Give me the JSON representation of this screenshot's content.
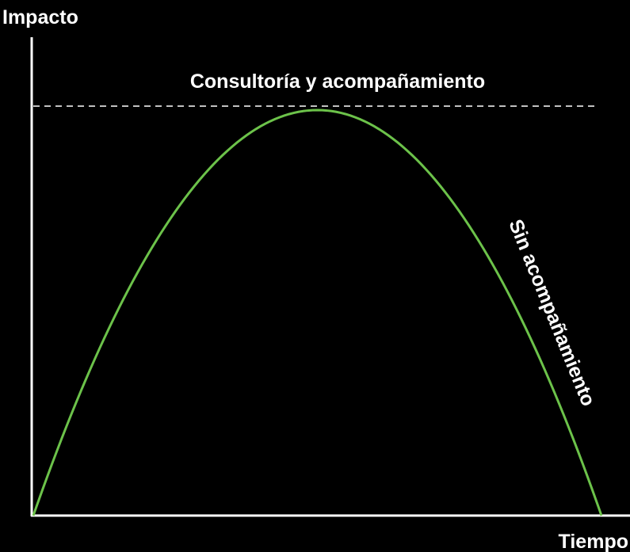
{
  "chart_data": {
    "type": "line",
    "title": "",
    "xlabel": "Tiempo",
    "ylabel": "Impacto",
    "xlim": [
      0,
      1
    ],
    "ylim": [
      0,
      1
    ],
    "grid": false,
    "legend": "none",
    "series": [
      {
        "name": "Sin acompañamiento",
        "shape": "parabola",
        "x": [
          0.0,
          0.1,
          0.2,
          0.3,
          0.4,
          0.5,
          0.6,
          0.7,
          0.8,
          0.9,
          1.0
        ],
        "y": [
          0.0,
          0.36,
          0.64,
          0.84,
          0.96,
          1.0,
          0.96,
          0.84,
          0.64,
          0.36,
          0.0
        ],
        "color": "#6cc24a"
      }
    ],
    "reference_lines": [
      {
        "name": "Consultoría y acompañamiento",
        "orientation": "horizontal",
        "y": 1.0,
        "style": "dashed",
        "color": "#ffffff"
      }
    ]
  }
}
